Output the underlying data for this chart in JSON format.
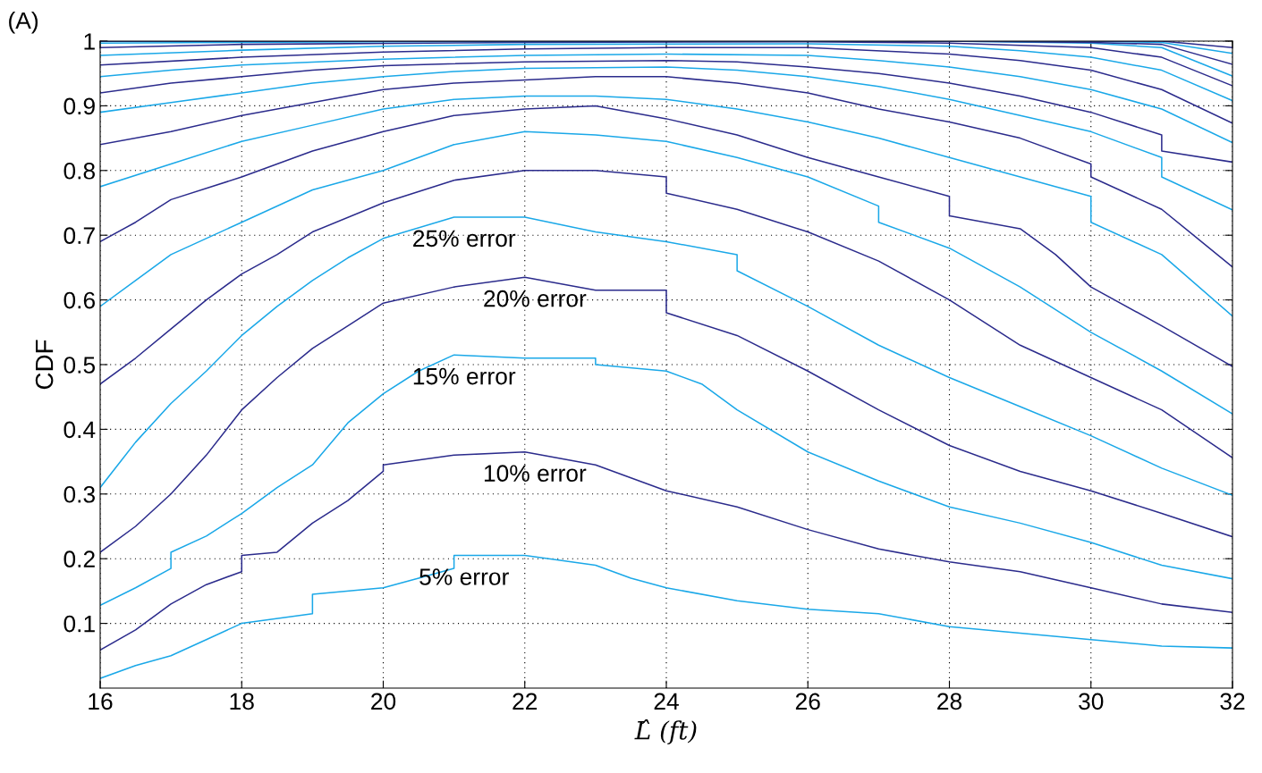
{
  "chart_data": {
    "type": "line",
    "xlabel": "L̂ (ft)",
    "ylabel": "CDF",
    "xlim": [
      16,
      32
    ],
    "ylim": [
      0,
      1
    ],
    "xticks": [
      16,
      18,
      20,
      22,
      24,
      26,
      28,
      30,
      32
    ],
    "yticks": [
      0.1,
      0.2,
      0.3,
      0.4,
      0.5,
      0.6,
      0.7,
      0.8,
      0.9,
      1
    ],
    "grid": true,
    "line_style": "solid",
    "annotations": [
      "(A)",
      "25% error",
      "20% error",
      "15% error",
      "10% error",
      "5% error"
    ],
    "series": [
      {
        "color": "#1aa8e8",
        "x": [
          16,
          16.5,
          17,
          17.5,
          18,
          19,
          19,
          20,
          20.5,
          21,
          21,
          22,
          23,
          23.5,
          24,
          25,
          26,
          27,
          28,
          29,
          30,
          31,
          32
        ],
        "values": [
          0.015,
          0.035,
          0.05,
          0.075,
          0.1,
          0.115,
          0.145,
          0.155,
          0.17,
          0.185,
          0.205,
          0.205,
          0.19,
          0.17,
          0.155,
          0.135,
          0.122,
          0.115,
          0.095,
          0.085,
          0.075,
          0.065,
          0.062
        ]
      },
      {
        "color": "#2b2b8c",
        "x": [
          16,
          16.5,
          17,
          17.5,
          18,
          18,
          18.5,
          19,
          19.5,
          20,
          20,
          21,
          22,
          23,
          24,
          25,
          26,
          27,
          28,
          29,
          30,
          31,
          32
        ],
        "values": [
          0.059,
          0.09,
          0.13,
          0.16,
          0.18,
          0.205,
          0.21,
          0.255,
          0.29,
          0.335,
          0.345,
          0.36,
          0.365,
          0.345,
          0.305,
          0.28,
          0.245,
          0.215,
          0.195,
          0.18,
          0.155,
          0.13,
          0.117
        ]
      },
      {
        "color": "#1aa8e8",
        "x": [
          16,
          16.5,
          17,
          17,
          17.5,
          18,
          18.5,
          19,
          19.5,
          20,
          20.5,
          21,
          22,
          23,
          23,
          24,
          24.5,
          25,
          26,
          27,
          28,
          29,
          30,
          31,
          32
        ],
        "values": [
          0.128,
          0.155,
          0.185,
          0.21,
          0.235,
          0.27,
          0.31,
          0.345,
          0.41,
          0.455,
          0.49,
          0.515,
          0.51,
          0.51,
          0.5,
          0.49,
          0.47,
          0.43,
          0.365,
          0.32,
          0.28,
          0.255,
          0.225,
          0.19,
          0.169
        ]
      },
      {
        "color": "#2b2b8c",
        "x": [
          16,
          16.5,
          17,
          17.5,
          18,
          18.5,
          19,
          19.5,
          20,
          21,
          22,
          23,
          24,
          24,
          25,
          26,
          27,
          28,
          29,
          30,
          31,
          32
        ],
        "values": [
          0.21,
          0.25,
          0.3,
          0.36,
          0.43,
          0.48,
          0.525,
          0.56,
          0.595,
          0.62,
          0.635,
          0.615,
          0.615,
          0.58,
          0.545,
          0.49,
          0.43,
          0.375,
          0.335,
          0.305,
          0.27,
          0.234
        ]
      },
      {
        "color": "#1aa8e8",
        "x": [
          16,
          16.5,
          17,
          17.5,
          18,
          18.5,
          19,
          19.5,
          20,
          21,
          22,
          23,
          24,
          25,
          25,
          26,
          27,
          28,
          29,
          30,
          31,
          32
        ],
        "values": [
          0.31,
          0.38,
          0.44,
          0.49,
          0.545,
          0.59,
          0.63,
          0.665,
          0.695,
          0.728,
          0.728,
          0.705,
          0.69,
          0.67,
          0.645,
          0.59,
          0.53,
          0.48,
          0.435,
          0.39,
          0.34,
          0.298
        ]
      },
      {
        "color": "#2b2b8c",
        "x": [
          16,
          16.5,
          17,
          17.5,
          18,
          18.5,
          19,
          20,
          21,
          22,
          23,
          24,
          24,
          25,
          26,
          27,
          28,
          29,
          30,
          31,
          32
        ],
        "values": [
          0.47,
          0.51,
          0.555,
          0.6,
          0.64,
          0.67,
          0.705,
          0.75,
          0.785,
          0.8,
          0.8,
          0.79,
          0.765,
          0.74,
          0.705,
          0.66,
          0.6,
          0.53,
          0.48,
          0.43,
          0.356
        ]
      },
      {
        "color": "#1aa8e8",
        "x": [
          16,
          16.5,
          17,
          18,
          19,
          20,
          21,
          22,
          23,
          24,
          25,
          26,
          27,
          27,
          28,
          29,
          30,
          31,
          32
        ],
        "values": [
          0.59,
          0.63,
          0.67,
          0.72,
          0.77,
          0.8,
          0.84,
          0.86,
          0.855,
          0.845,
          0.82,
          0.79,
          0.745,
          0.72,
          0.68,
          0.62,
          0.55,
          0.49,
          0.424
        ]
      },
      {
        "color": "#2b2b8c",
        "x": [
          16,
          16.5,
          17,
          18,
          19,
          20,
          21,
          22,
          23,
          24,
          25,
          26,
          27,
          28,
          28,
          29,
          29.5,
          30,
          31,
          32
        ],
        "values": [
          0.69,
          0.72,
          0.755,
          0.79,
          0.83,
          0.86,
          0.885,
          0.895,
          0.9,
          0.88,
          0.855,
          0.82,
          0.79,
          0.76,
          0.73,
          0.71,
          0.67,
          0.62,
          0.56,
          0.497
        ]
      },
      {
        "color": "#1aa8e8",
        "x": [
          16,
          17,
          18,
          19,
          20,
          21,
          22,
          23,
          24,
          25,
          26,
          27,
          28,
          29,
          30,
          30,
          31,
          32
        ],
        "values": [
          0.775,
          0.81,
          0.845,
          0.87,
          0.895,
          0.91,
          0.915,
          0.915,
          0.91,
          0.895,
          0.875,
          0.85,
          0.82,
          0.79,
          0.76,
          0.72,
          0.67,
          0.575
        ]
      },
      {
        "color": "#2b2b8c",
        "x": [
          16,
          17,
          18,
          19,
          20,
          21,
          22,
          23,
          24,
          25,
          26,
          27,
          28,
          29,
          30,
          30,
          31,
          32
        ],
        "values": [
          0.84,
          0.86,
          0.885,
          0.905,
          0.925,
          0.935,
          0.94,
          0.945,
          0.945,
          0.935,
          0.92,
          0.895,
          0.875,
          0.85,
          0.81,
          0.79,
          0.74,
          0.651
        ]
      },
      {
        "color": "#1aa8e8",
        "x": [
          16,
          17,
          18,
          19,
          20,
          21,
          22,
          24,
          25,
          26,
          27,
          28,
          29,
          30,
          31,
          31,
          32
        ],
        "values": [
          0.89,
          0.905,
          0.92,
          0.935,
          0.945,
          0.953,
          0.958,
          0.96,
          0.955,
          0.945,
          0.93,
          0.91,
          0.885,
          0.86,
          0.82,
          0.79,
          0.739
        ]
      },
      {
        "color": "#2b2b8c",
        "x": [
          16,
          17,
          18,
          19,
          20,
          22,
          24,
          25,
          26,
          27,
          28,
          29,
          30,
          31,
          31,
          32
        ],
        "values": [
          0.92,
          0.935,
          0.945,
          0.955,
          0.962,
          0.968,
          0.97,
          0.968,
          0.96,
          0.95,
          0.935,
          0.915,
          0.89,
          0.855,
          0.83,
          0.813
        ]
      },
      {
        "color": "#1aa8e8",
        "x": [
          16,
          17,
          18,
          20,
          22,
          24,
          26,
          27,
          28,
          29,
          30,
          31,
          32
        ],
        "values": [
          0.945,
          0.955,
          0.963,
          0.972,
          0.978,
          0.98,
          0.978,
          0.97,
          0.96,
          0.945,
          0.925,
          0.895,
          0.843
        ]
      },
      {
        "color": "#2b2b8c",
        "x": [
          16,
          18,
          20,
          22,
          24,
          26,
          28,
          29,
          30,
          31,
          32
        ],
        "values": [
          0.963,
          0.975,
          0.983,
          0.988,
          0.99,
          0.99,
          0.98,
          0.97,
          0.955,
          0.925,
          0.873
        ]
      },
      {
        "color": "#1aa8e8",
        "x": [
          16,
          18,
          20,
          22,
          26,
          28,
          29,
          30,
          31,
          32
        ],
        "values": [
          0.978,
          0.986,
          0.992,
          0.995,
          0.996,
          0.992,
          0.985,
          0.975,
          0.955,
          0.908
        ]
      },
      {
        "color": "#2b2b8c",
        "x": [
          16,
          18,
          22,
          26,
          28,
          30,
          31,
          32
        ],
        "values": [
          0.99,
          0.995,
          0.998,
          0.999,
          0.997,
          0.99,
          0.975,
          0.931
        ]
      },
      {
        "color": "#1aa8e8",
        "x": [
          16,
          20,
          26,
          28,
          30,
          31,
          32
        ],
        "values": [
          0.997,
          0.999,
          1.0,
          1.0,
          0.997,
          0.99,
          0.946
        ]
      },
      {
        "color": "#2b2b8c",
        "x": [
          16,
          28,
          30,
          31,
          32
        ],
        "values": [
          1.0,
          1.0,
          0.998,
          0.995,
          0.964
        ]
      },
      {
        "color": "#1aa8e8",
        "x": [
          16,
          30,
          31,
          32
        ],
        "values": [
          1.0,
          1.0,
          0.998,
          0.981
        ]
      },
      {
        "color": "#2b2b8c",
        "x": [
          16,
          31,
          32
        ],
        "values": [
          1.0,
          1.0,
          0.99
        ]
      }
    ]
  }
}
